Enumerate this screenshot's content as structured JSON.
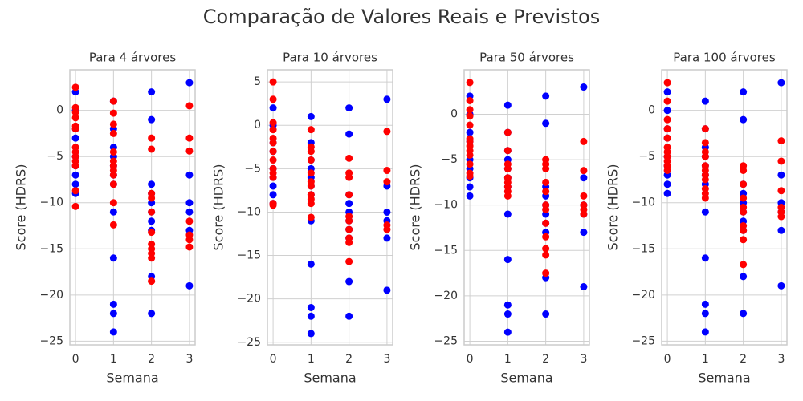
{
  "title": "Comparação de Valores Reais e Previstos",
  "chart_data": [
    {
      "type": "scatter",
      "title": "Para 4 árvores",
      "xlabel": "Semana",
      "ylabel": "Score (HDRS)",
      "grid": true,
      "xlim": [
        -0.15,
        3.15
      ],
      "ylim": [
        -25.4,
        4.4
      ],
      "xticks": [
        0,
        1,
        2,
        3
      ],
      "yticks": [
        0,
        {
          "value": -5,
          "label": "−5"
        },
        {
          "value": -10,
          "label": "−10"
        },
        {
          "value": -15,
          "label": "−15"
        },
        {
          "value": -20,
          "label": "−20"
        },
        {
          "value": -25,
          "label": "−25"
        }
      ],
      "series": [
        {
          "color": "#0000ff",
          "x": [
            0,
            0,
            0,
            0,
            0,
            0,
            0,
            0,
            0,
            1,
            1,
            1,
            1,
            1,
            1,
            1,
            1,
            1,
            1,
            1,
            1,
            2,
            2,
            2,
            2,
            2,
            2,
            2,
            2,
            2,
            2,
            3,
            3,
            3,
            3,
            3,
            3
          ],
          "values": [
            2,
            0,
            -2,
            -3,
            -5,
            -6,
            -7,
            -8,
            -9,
            1,
            -2,
            -4,
            -5,
            -6,
            -7,
            -8,
            -11,
            -16,
            -21,
            -22,
            -24,
            2,
            -1,
            -8,
            -9,
            -10,
            -11,
            -12,
            -13,
            -18,
            -22,
            3,
            -7,
            -10,
            -11,
            -13,
            -19
          ]
        },
        {
          "color": "#ff0000",
          "x": [
            0,
            0,
            0,
            0,
            0,
            0,
            0,
            0,
            0,
            0,
            0,
            0,
            0,
            1,
            1,
            1,
            1,
            1,
            1,
            1,
            1,
            1,
            1,
            1,
            1,
            2,
            2,
            2,
            2,
            2,
            2,
            2,
            2,
            2,
            2,
            2,
            3,
            3,
            3,
            3,
            3,
            3,
            3
          ],
          "values": [
            2.5,
            0.3,
            -0.2,
            -0.8,
            -1.7,
            -2,
            -4,
            -4.5,
            -5,
            -5.5,
            -6,
            -8.7,
            -10.4,
            1,
            -0.3,
            -1.5,
            -2.5,
            -4.5,
            -5.5,
            -6,
            -6.5,
            -7,
            -8,
            -10,
            -12.4,
            -3,
            -4.2,
            -9,
            -9.5,
            -11,
            -13.2,
            -14.5,
            -15,
            -15.5,
            -16,
            -18.5,
            0.5,
            -3,
            -4.4,
            -12,
            -13.5,
            -14,
            -14.8
          ]
        }
      ]
    },
    {
      "type": "scatter",
      "title": "Para 10 árvores",
      "xlabel": "Semana",
      "ylabel": "Score (HDRS)",
      "grid": true,
      "xlim": [
        -0.15,
        3.15
      ],
      "ylim": [
        -25.3,
        6.4
      ],
      "xticks": [
        0,
        1,
        2,
        3
      ],
      "yticks": [
        5,
        0,
        {
          "value": -5,
          "label": "−5"
        },
        {
          "value": -10,
          "label": "−10"
        },
        {
          "value": -15,
          "label": "−15"
        },
        {
          "value": -20,
          "label": "−20"
        },
        {
          "value": -25,
          "label": "−25"
        }
      ],
      "series": [
        {
          "color": "#0000ff",
          "x": [
            0,
            0,
            0,
            0,
            0,
            0,
            0,
            0,
            0,
            1,
            1,
            1,
            1,
            1,
            1,
            1,
            1,
            1,
            1,
            1,
            1,
            2,
            2,
            2,
            2,
            2,
            2,
            2,
            2,
            2,
            2,
            3,
            3,
            3,
            3,
            3,
            3
          ],
          "values": [
            2,
            0,
            -2,
            -3,
            -5,
            -6,
            -7,
            -8,
            -9,
            1,
            -2,
            -4,
            -5,
            -6,
            -7,
            -8,
            -11,
            -16,
            -21,
            -22,
            -24,
            2,
            -1,
            -8,
            -9,
            -10,
            -11,
            -12,
            -13,
            -18,
            -22,
            3,
            -7,
            -10,
            -11,
            -13,
            -19
          ]
        },
        {
          "color": "#ff0000",
          "x": [
            0,
            0,
            0,
            0,
            0,
            0,
            0,
            0,
            0,
            0,
            0,
            0,
            0,
            1,
            1,
            1,
            1,
            1,
            1,
            1,
            1,
            1,
            1,
            1,
            2,
            2,
            2,
            2,
            2,
            2,
            2,
            2,
            2,
            2,
            3,
            3,
            3,
            3,
            3
          ],
          "values": [
            5,
            3,
            0.3,
            -0.5,
            -1.5,
            -2,
            -3,
            -4,
            -5,
            -5.5,
            -6,
            -9,
            -9.2,
            -0.5,
            -2.5,
            -3,
            -4,
            -5.5,
            -6.5,
            -7,
            -8,
            -8.5,
            -9,
            -10.6,
            -3.8,
            -5.5,
            -6,
            -8,
            -10.5,
            -11,
            -12,
            -13,
            -13.5,
            -15.7,
            -0.7,
            -5.2,
            -6.5,
            -11.5,
            -12
          ]
        }
      ]
    },
    {
      "type": "scatter",
      "title": "Para 50 árvores",
      "xlabel": "Semana",
      "ylabel": "Score (HDRS)",
      "grid": true,
      "xlim": [
        -0.15,
        3.15
      ],
      "ylim": [
        -25.4,
        4.9
      ],
      "xticks": [
        0,
        1,
        2,
        3
      ],
      "yticks": [
        0,
        {
          "value": -5,
          "label": "−5"
        },
        {
          "value": -10,
          "label": "−10"
        },
        {
          "value": -15,
          "label": "−15"
        },
        {
          "value": -20,
          "label": "−20"
        },
        {
          "value": -25,
          "label": "−25"
        }
      ],
      "series": [
        {
          "color": "#0000ff",
          "x": [
            0,
            0,
            0,
            0,
            0,
            0,
            0,
            0,
            0,
            1,
            1,
            1,
            1,
            1,
            1,
            1,
            1,
            1,
            1,
            1,
            1,
            2,
            2,
            2,
            2,
            2,
            2,
            2,
            2,
            2,
            2,
            3,
            3,
            3,
            3,
            3,
            3
          ],
          "values": [
            2,
            0,
            -2,
            -3,
            -5,
            -6,
            -7,
            -8,
            -9,
            1,
            -2,
            -4,
            -5,
            -6,
            -7,
            -8,
            -11,
            -16,
            -21,
            -22,
            -24,
            2,
            -1,
            -8,
            -9,
            -10,
            -11,
            -12,
            -13,
            -18,
            -22,
            3,
            -7,
            -10,
            -11,
            -13,
            -19
          ]
        },
        {
          "color": "#ff0000",
          "x": [
            0,
            0,
            0,
            0,
            0,
            0,
            0,
            0,
            0,
            0,
            0,
            0,
            0,
            1,
            1,
            1,
            1,
            1,
            1,
            1,
            1,
            1,
            2,
            2,
            2,
            2,
            2,
            2,
            2,
            2,
            2,
            2,
            2,
            2,
            3,
            3,
            3,
            3,
            3,
            3
          ],
          "values": [
            3.5,
            1.5,
            0.5,
            -0.2,
            -1.2,
            -2.7,
            -3,
            -3.5,
            -4,
            -4.5,
            -5.5,
            -6.5,
            -6.8,
            -2,
            -4,
            -5.5,
            -6,
            -7,
            -7.5,
            -8,
            -8.5,
            -9,
            -5,
            -5.5,
            -6,
            -7.5,
            -8.5,
            -10,
            -10.5,
            -12,
            -13.5,
            -14.8,
            -15.5,
            -17.5,
            -3,
            -6.2,
            -9,
            -10,
            -10.5,
            -11
          ]
        }
      ]
    },
    {
      "type": "scatter",
      "title": "Para 100 árvores",
      "xlabel": "Semana",
      "ylabel": "Score (HDRS)",
      "grid": true,
      "xlim": [
        -0.15,
        3.15
      ],
      "ylim": [
        -25.4,
        4.4
      ],
      "xticks": [
        0,
        1,
        2,
        3
      ],
      "yticks": [
        0,
        {
          "value": -5,
          "label": "−5"
        },
        {
          "value": -10,
          "label": "−10"
        },
        {
          "value": -15,
          "label": "−15"
        },
        {
          "value": -20,
          "label": "−20"
        },
        {
          "value": -25,
          "label": "−25"
        }
      ],
      "series": [
        {
          "color": "#0000ff",
          "x": [
            0,
            0,
            0,
            0,
            0,
            0,
            0,
            0,
            0,
            1,
            1,
            1,
            1,
            1,
            1,
            1,
            1,
            1,
            1,
            1,
            1,
            2,
            2,
            2,
            2,
            2,
            2,
            2,
            2,
            2,
            2,
            3,
            3,
            3,
            3,
            3,
            3
          ],
          "values": [
            2,
            0,
            -2,
            -3,
            -5,
            -6,
            -7,
            -8,
            -9,
            1,
            -2,
            -4,
            -5,
            -6,
            -7,
            -8,
            -11,
            -16,
            -21,
            -22,
            -24,
            2,
            -1,
            -8,
            -9,
            -10,
            -11,
            -12,
            -13,
            -18,
            -22,
            3,
            -7,
            -10,
            -11,
            -13,
            -19
          ]
        },
        {
          "color": "#ff0000",
          "x": [
            0,
            0,
            0,
            0,
            0,
            0,
            0,
            0,
            0,
            0,
            0,
            1,
            1,
            1,
            1,
            1,
            1,
            1,
            1,
            1,
            1,
            1,
            2,
            2,
            2,
            2,
            2,
            2,
            2,
            2,
            2,
            2,
            3,
            3,
            3,
            3,
            3,
            3
          ],
          "values": [
            3,
            1,
            -1,
            -2,
            -3,
            -4,
            -4.5,
            -5,
            -5.5,
            -6,
            -6.5,
            -2,
            -3.5,
            -4.5,
            -5,
            -6,
            -6.5,
            -7,
            -7.5,
            -8.5,
            -9,
            -9.5,
            -6,
            -6.5,
            -8,
            -9.5,
            -10.5,
            -11,
            -12.5,
            -13,
            -14,
            -16.7,
            -3.3,
            -5.5,
            -8.7,
            -10.5,
            -11,
            -11.5
          ]
        }
      ]
    }
  ]
}
